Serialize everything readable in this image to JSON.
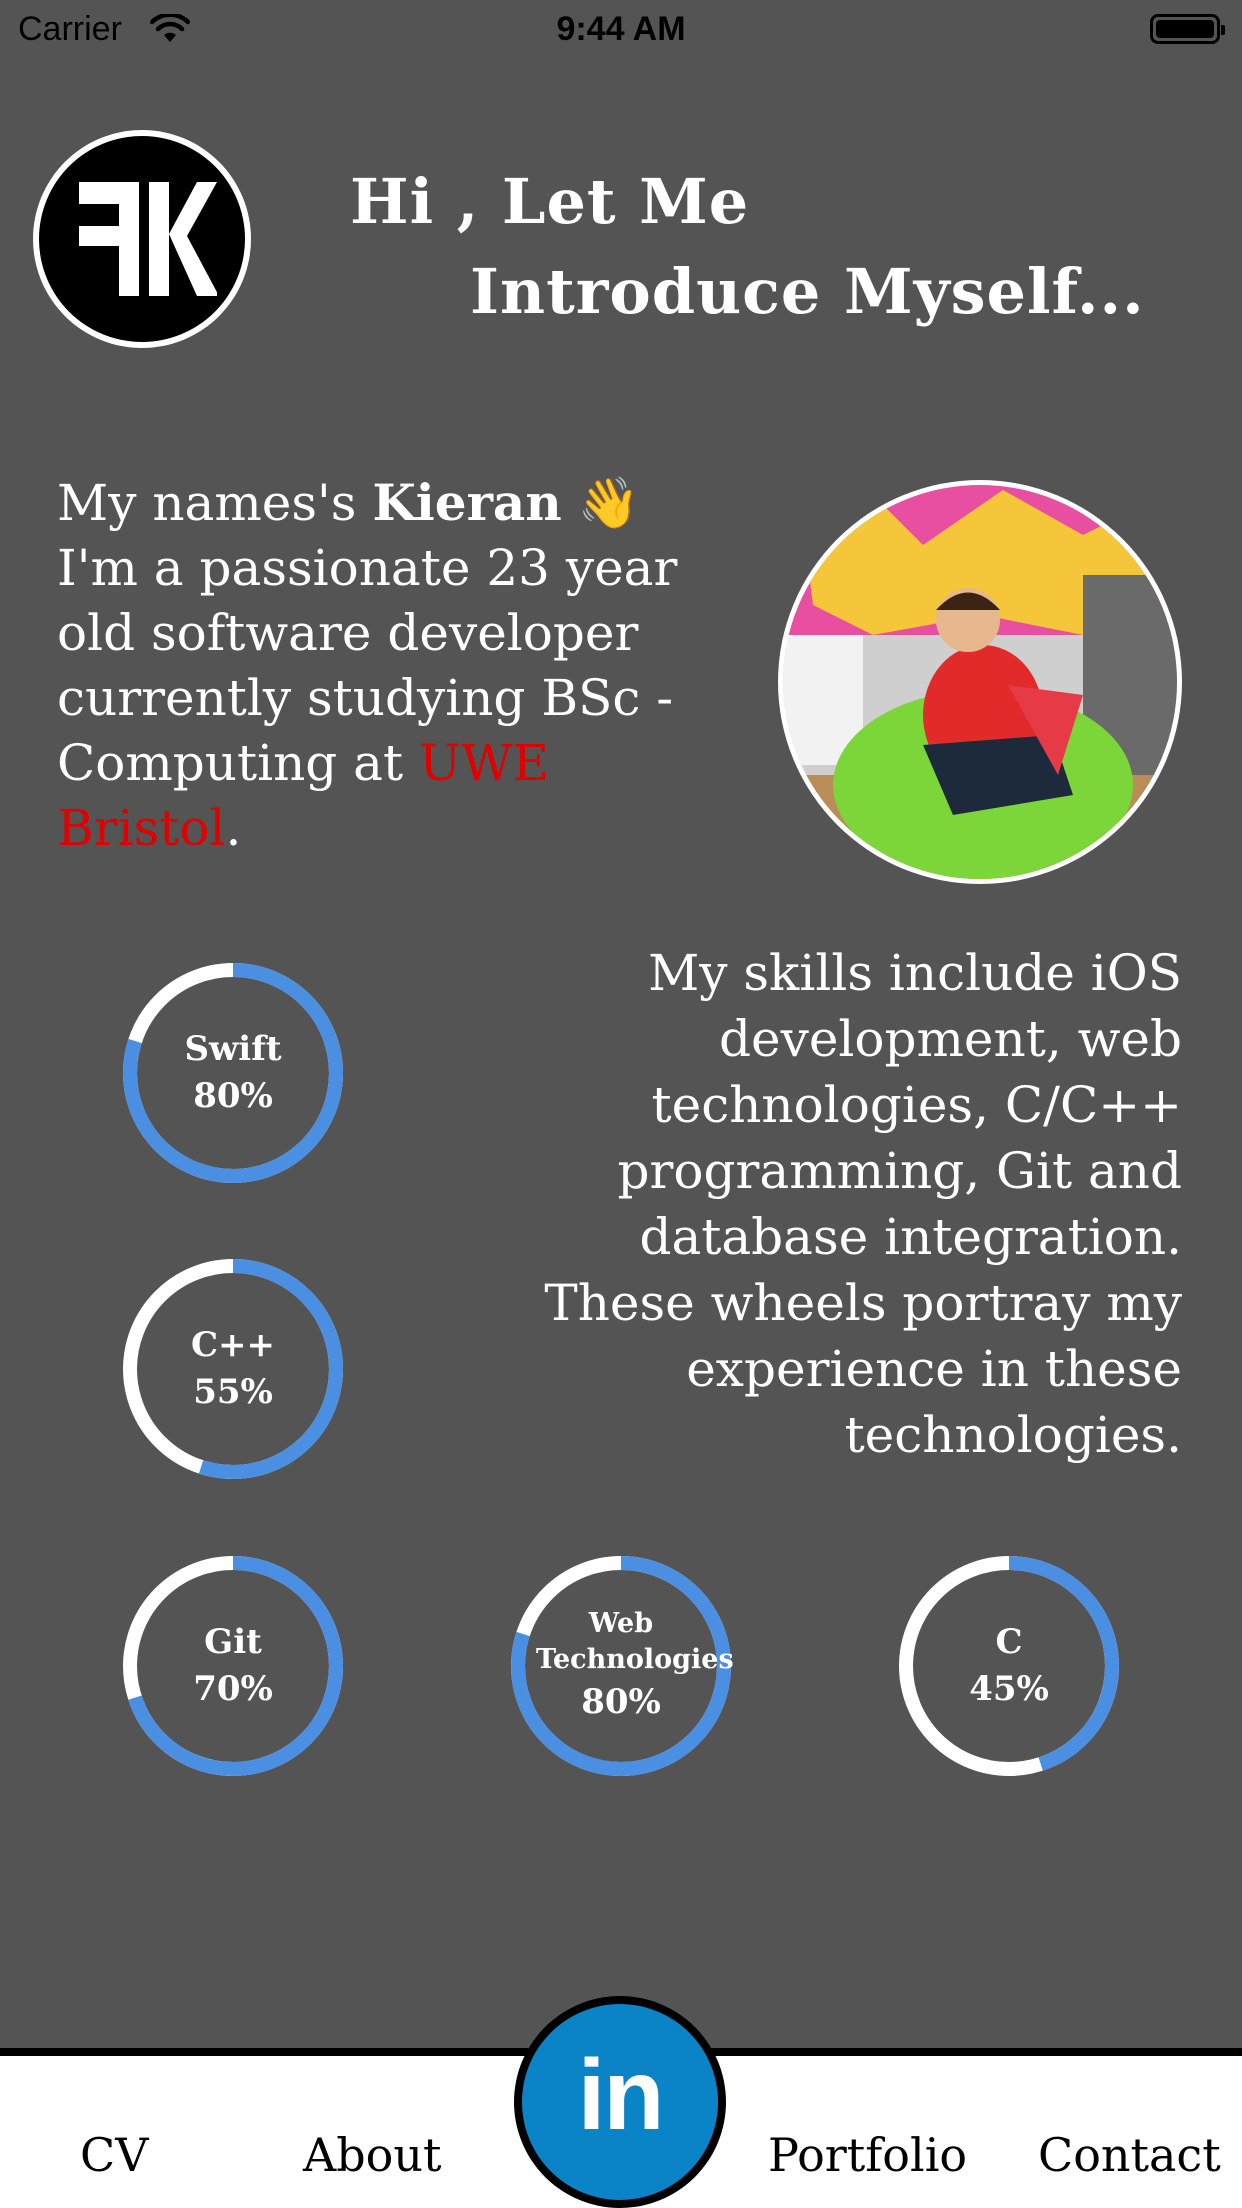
{
  "status_bar": {
    "carrier": "Carrier",
    "time": "9:44 AM"
  },
  "header": {
    "line1": "Hi , Let Me",
    "line2": "Introduce Myself..."
  },
  "intro": {
    "prefix": "My names's ",
    "name": "Kieran",
    "emoji": "👋",
    "body": "I'm a passionate 23 year old software developer currently studying BSc - Computing at ",
    "university": "UWE Bristol",
    "suffix": "."
  },
  "skills_text": "My skills include iOS development, web technologies, C/C++ programming, Git and database integration. These wheels portray my experience in these technologies.",
  "wheels": [
    {
      "name": "Swift",
      "percent_label": "80%",
      "value": 0.8
    },
    {
      "name": "C++",
      "percent_label": "55%",
      "value": 0.55
    },
    {
      "name": "Git",
      "percent_label": "70%",
      "value": 0.7
    },
    {
      "name": "Web Technologies",
      "percent_label": "80%",
      "value": 0.8
    },
    {
      "name": "C",
      "percent_label": "45%",
      "value": 0.45
    }
  ],
  "tab_bar": {
    "cv": "CV",
    "about": "About",
    "linkedin": "in",
    "portfolio": "Portfolio",
    "contact": "Contact"
  },
  "colors": {
    "background": "#545454",
    "accent": "#4a8fe2",
    "track": "#ffffff",
    "highlight": "#e00000",
    "linkedin": "#0a84c6"
  },
  "icons": {
    "logo": "fk-logo-icon",
    "linkedin": "linkedin-icon",
    "wifi": "wifi-icon",
    "battery": "battery-icon"
  }
}
